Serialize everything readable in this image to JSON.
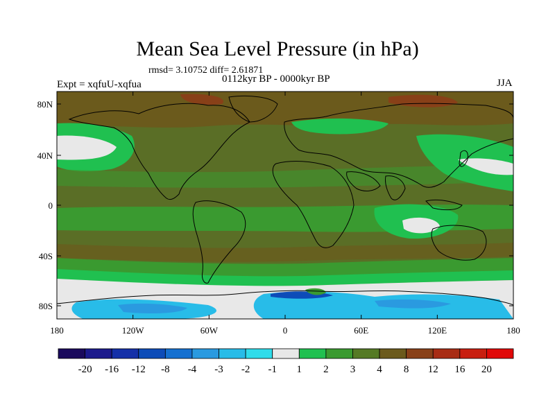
{
  "title": "Mean Sea Level Pressure (in hPa)",
  "stats": "rmsd= 3.10752 diff= 2.61871",
  "period": "0112kyr BP - 0000kyr BP",
  "experiment": "Expt = xqfuU-xqfua",
  "season": "JJA",
  "axes": {
    "lat_ticks": [
      "80N",
      "40N",
      "0",
      "40S",
      "80S"
    ],
    "lon_ticks": [
      "180",
      "120W",
      "60W",
      "0",
      "60E",
      "120E",
      "180"
    ]
  },
  "colorbar": {
    "labels": [
      "-20",
      "-16",
      "-12",
      "-8",
      "-4",
      "-3",
      "-2",
      "-1",
      "1",
      "2",
      "3",
      "4",
      "8",
      "12",
      "16",
      "20"
    ],
    "colors": [
      "#1a0a5c",
      "#1c1a8c",
      "#1530a8",
      "#0d4cb8",
      "#1570d0",
      "#2a9ae0",
      "#28bce8",
      "#30dcea",
      "#e8e8e8",
      "#20c050",
      "#3a9a30",
      "#557a25",
      "#6b5a1c",
      "#884018",
      "#a82c14",
      "#c81e10",
      "#e00808"
    ]
  },
  "legend_colors": {
    "land_outline": "#000000",
    "dominant_3_4": "#5a6e26",
    "band_4_8": "#6b5a1c",
    "band_2_3": "#3a9a30",
    "band_1_2": "#20c050",
    "neutral": "#e8e8e8"
  }
}
